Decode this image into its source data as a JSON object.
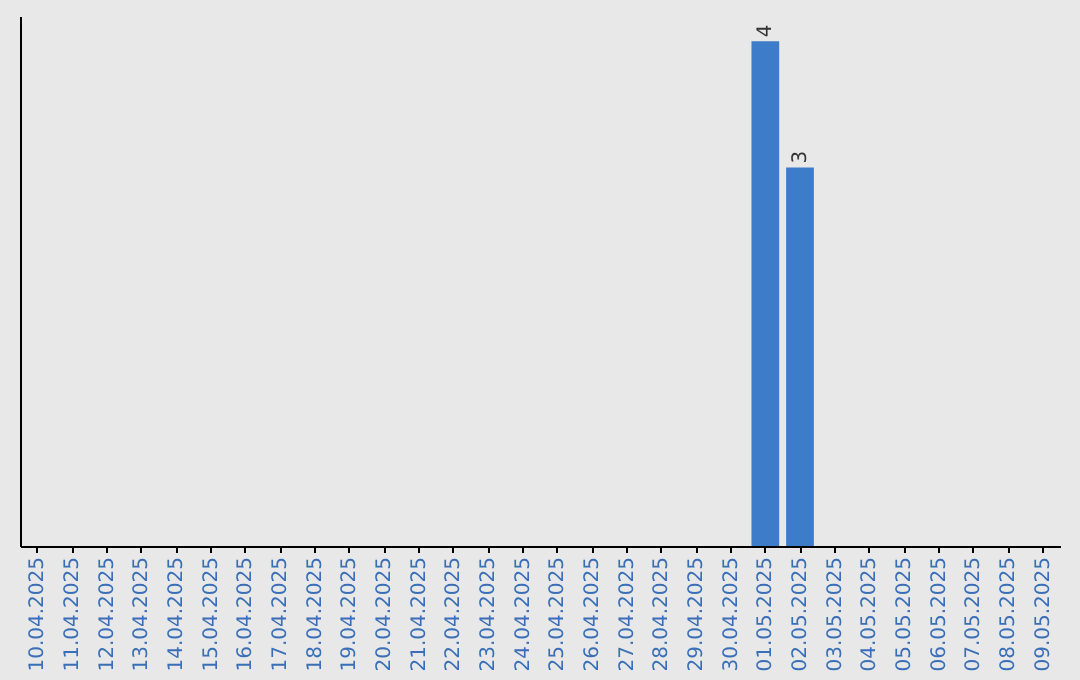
{
  "chart_data": {
    "type": "bar",
    "categories": [
      "10.04.2025",
      "11.04.2025",
      "12.04.2025",
      "13.04.2025",
      "14.04.2025",
      "15.04.2025",
      "16.04.2025",
      "17.04.2025",
      "18.04.2025",
      "19.04.2025",
      "20.04.2025",
      "21.04.2025",
      "22.04.2025",
      "23.04.2025",
      "24.04.2025",
      "25.04.2025",
      "26.04.2025",
      "27.04.2025",
      "28.04.2025",
      "29.04.2025",
      "30.04.2025",
      "01.05.2025",
      "02.05.2025",
      "03.05.2025",
      "04.05.2025",
      "05.05.2025",
      "06.05.2025",
      "07.05.2025",
      "08.05.2025",
      "09.05.2025"
    ],
    "values": [
      null,
      null,
      null,
      null,
      null,
      null,
      null,
      null,
      null,
      null,
      null,
      null,
      null,
      null,
      null,
      null,
      null,
      null,
      null,
      null,
      null,
      4,
      3,
      null,
      null,
      null,
      null,
      null,
      null,
      null
    ],
    "data_labels": true,
    "color": "#3d7cc9",
    "ylim": [
      0,
      4.2
    ],
    "tick_labels": "x",
    "grid": false
  }
}
